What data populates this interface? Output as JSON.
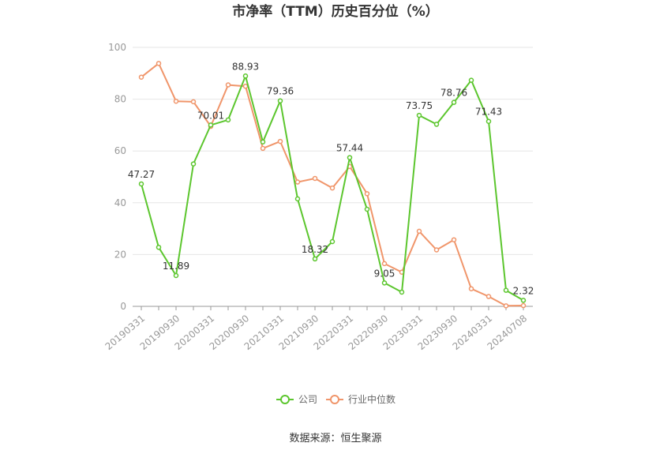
{
  "chart_data": {
    "type": "line",
    "title": "市净率（TTM）历史百分位（%）",
    "ylim": [
      0,
      100
    ],
    "yticks": [
      0,
      20,
      40,
      60,
      80,
      100
    ],
    "grid": true,
    "legend_position": "bottom",
    "x_tick_labels": [
      "20190331",
      "20190930",
      "20200331",
      "20200930",
      "20210331",
      "20210930",
      "20220331",
      "20220930",
      "20230331",
      "20230930",
      "20240331",
      "20240708"
    ],
    "x": [
      "20190331",
      "20190630",
      "20190930",
      "20191231",
      "20200331",
      "20200630",
      "20200930",
      "20201231",
      "20210331",
      "20210630",
      "20210930",
      "20211231",
      "20220331",
      "20220630",
      "20220930",
      "20221231",
      "20230331",
      "20230630",
      "20230930",
      "20231231",
      "20240331",
      "20240630",
      "20240708"
    ],
    "series": [
      {
        "name": "公司",
        "color": "#5cc62e",
        "values": [
          47.27,
          22.8,
          11.89,
          55.0,
          70.01,
          72.0,
          88.93,
          63.5,
          79.36,
          41.5,
          18.32,
          25.0,
          57.44,
          37.5,
          9.05,
          5.5,
          73.75,
          70.3,
          78.76,
          87.3,
          71.43,
          6.2,
          2.32
        ],
        "labels": [
          "47.27",
          "",
          "11.89",
          "",
          "70.01",
          "",
          "88.93",
          "",
          "79.36",
          "",
          "18.32",
          "",
          "57.44",
          "",
          "9.05",
          "",
          "73.75",
          "",
          "78.76",
          "",
          "71.43",
          "",
          "2.32"
        ]
      },
      {
        "name": "行业中位数",
        "color": "#f0956a",
        "values": [
          88.5,
          93.8,
          79.2,
          79.0,
          69.5,
          85.5,
          85.0,
          61.0,
          63.7,
          48.0,
          49.4,
          45.7,
          54.0,
          43.5,
          16.5,
          13.2,
          29.0,
          21.8,
          25.7,
          6.8,
          3.8,
          0.2,
          0.3
        ]
      }
    ]
  },
  "legend": {
    "company": "公司",
    "industry": "行业中位数"
  },
  "source": "数据来源：恒生聚源"
}
